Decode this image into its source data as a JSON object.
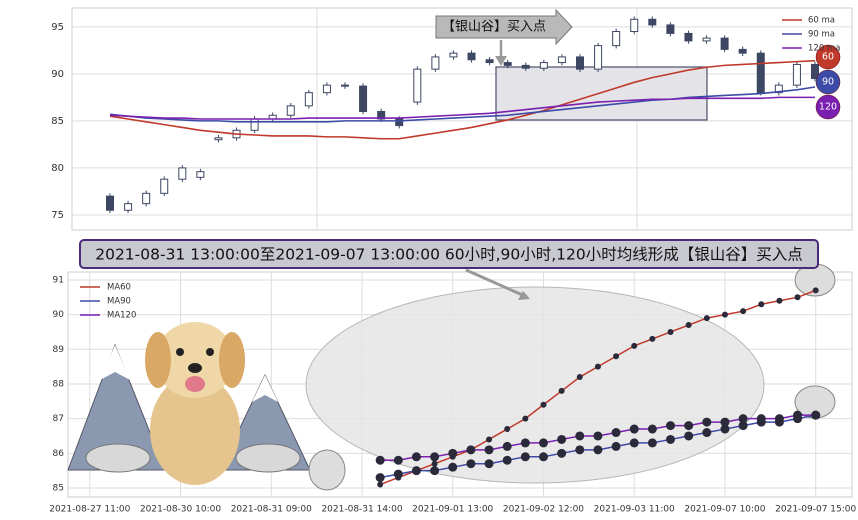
{
  "banner": "2021-08-31 13:00:00至2021-09-07 13:00:00 60小时,90小时,120小时均线形成【银山谷】买入点",
  "chart_data": [
    {
      "type": "candlestick",
      "annotation": "【银山谷】买入点",
      "badge_labels": [
        "60",
        "90",
        "120"
      ],
      "ylim": [
        73.4,
        97
      ],
      "yticks": [
        75,
        80,
        85,
        90,
        95
      ],
      "grid": true,
      "legend": "upper right",
      "up_color": "#ffffff",
      "down_color": "#3d4763",
      "open": [
        77,
        75.5,
        76.2,
        77.3,
        78.8,
        79.0,
        83.0,
        83.2,
        84.0,
        85.2,
        85.6,
        86.6,
        88.0,
        88.8,
        88.7,
        86.0,
        85.2,
        87.0,
        90.5,
        91.8,
        92.2,
        91.5,
        91.2,
        90.9,
        90.6,
        91.2,
        91.8,
        90.5,
        93.0,
        94.5,
        95.8,
        95.2,
        94.3,
        93.5,
        93.8,
        92.6,
        92.2,
        88.0,
        88.8,
        91.0
      ],
      "close": [
        75.5,
        76.2,
        77.3,
        78.8,
        80.0,
        79.6,
        83.2,
        84.0,
        85.2,
        85.6,
        86.6,
        88.0,
        88.8,
        88.7,
        86.0,
        85.2,
        84.5,
        90.5,
        91.8,
        92.2,
        91.5,
        91.2,
        90.9,
        90.6,
        91.2,
        91.8,
        90.5,
        93.0,
        94.5,
        95.8,
        95.2,
        94.3,
        93.5,
        93.8,
        92.6,
        92.2,
        88.0,
        88.8,
        91.0,
        89.5
      ],
      "high": [
        77.3,
        76.5,
        77.6,
        79.1,
        80.3,
        79.9,
        83.5,
        84.3,
        85.5,
        85.9,
        86.9,
        88.3,
        89.1,
        89.1,
        89.0,
        86.3,
        85.5,
        90.8,
        92.1,
        92.5,
        92.5,
        91.8,
        91.5,
        91.2,
        91.5,
        92.1,
        92.1,
        93.3,
        94.8,
        96.1,
        96.1,
        95.5,
        94.6,
        94.1,
        94.1,
        92.9,
        92.5,
        89.1,
        91.3,
        91.3
      ],
      "low": [
        75.2,
        75.2,
        75.9,
        77.0,
        78.5,
        78.7,
        82.7,
        82.9,
        83.7,
        84.9,
        85.3,
        86.3,
        87.7,
        88.4,
        85.7,
        84.9,
        84.2,
        86.7,
        90.2,
        91.5,
        91.2,
        90.9,
        90.6,
        90.3,
        90.3,
        90.9,
        90.2,
        90.2,
        92.7,
        94.2,
        94.9,
        94.0,
        93.2,
        93.2,
        92.3,
        91.9,
        87.7,
        87.7,
        88.5,
        89.2
      ],
      "series": [
        {
          "name": "60 ma",
          "color": "#c0392b",
          "values": [
            85.5,
            85.2,
            84.9,
            84.6,
            84.3,
            84.0,
            83.8,
            83.6,
            83.5,
            83.4,
            83.4,
            83.4,
            83.3,
            83.3,
            83.2,
            83.1,
            83.1,
            83.4,
            83.7,
            84.0,
            84.3,
            84.7,
            85.1,
            85.6,
            86.1,
            86.7,
            87.3,
            87.9,
            88.5,
            89.1,
            89.6,
            90.0,
            90.4,
            90.7,
            90.9,
            91.0,
            91.1,
            91.2,
            91.3,
            91.4
          ]
        },
        {
          "name": "90 ma",
          "color": "#3d4ba8",
          "values": [
            85.7,
            85.5,
            85.3,
            85.2,
            85.1,
            85.0,
            85.0,
            84.9,
            84.9,
            84.9,
            84.9,
            84.9,
            84.9,
            85.0,
            85.0,
            85.0,
            85.0,
            85.1,
            85.2,
            85.3,
            85.4,
            85.5,
            85.6,
            85.8,
            86.0,
            86.2,
            86.4,
            86.6,
            86.8,
            87.0,
            87.2,
            87.3,
            87.5,
            87.6,
            87.7,
            87.8,
            87.9,
            88.1,
            88.3,
            88.6
          ]
        },
        {
          "name": "120 ma",
          "color": "#7a1fb0",
          "values": [
            85.6,
            85.5,
            85.4,
            85.3,
            85.3,
            85.2,
            85.2,
            85.2,
            85.2,
            85.2,
            85.2,
            85.3,
            85.3,
            85.3,
            85.3,
            85.3,
            85.3,
            85.4,
            85.5,
            85.6,
            85.7,
            85.8,
            86.0,
            86.2,
            86.4,
            86.6,
            86.8,
            87.0,
            87.1,
            87.2,
            87.3,
            87.3,
            87.4,
            87.4,
            87.4,
            87.4,
            87.4,
            87.5,
            87.5,
            87.5
          ]
        }
      ]
    },
    {
      "type": "line",
      "ylim": [
        84.74,
        91.23
      ],
      "yticks": [
        85,
        86,
        87,
        88,
        89,
        90,
        91
      ],
      "xlim": [
        -1.2,
        42
      ],
      "xticks": [
        {
          "value": 0,
          "label": "2021-08-27 11:00"
        },
        {
          "value": 5,
          "label": "2021-08-30 10:00"
        },
        {
          "value": 10,
          "label": "2021-08-31 09:00"
        },
        {
          "value": 15,
          "label": "2021-08-31 14:00"
        },
        {
          "value": 20,
          "label": "2021-09-01 13:00"
        },
        {
          "value": 25,
          "label": "2021-09-02 12:00"
        },
        {
          "value": 30,
          "label": "2021-09-03 11:00"
        },
        {
          "value": 35,
          "label": "2021-09-07 10:00"
        },
        {
          "value": 40,
          "label": "2021-09-07 15:00"
        }
      ],
      "grid": true,
      "legend": "upper left",
      "x": [
        16,
        17,
        18,
        19,
        20,
        21,
        22,
        23,
        24,
        25,
        26,
        27,
        28,
        29,
        30,
        31,
        32,
        33,
        34,
        35,
        36,
        37,
        38,
        39,
        40
      ],
      "series": [
        {
          "name": "MA60",
          "color": "#c0392b",
          "values": [
            85.1,
            85.3,
            85.5,
            85.7,
            85.9,
            86.1,
            86.4,
            86.7,
            87.0,
            87.4,
            87.8,
            88.2,
            88.5,
            88.8,
            89.1,
            89.3,
            89.5,
            89.7,
            89.9,
            90.0,
            90.1,
            90.3,
            90.4,
            90.5,
            90.7
          ]
        },
        {
          "name": "MA90",
          "color": "#3d4ba8",
          "values": [
            85.3,
            85.4,
            85.5,
            85.5,
            85.6,
            85.7,
            85.7,
            85.8,
            85.9,
            85.9,
            86.0,
            86.1,
            86.1,
            86.2,
            86.3,
            86.3,
            86.4,
            86.5,
            86.6,
            86.7,
            86.8,
            86.9,
            86.9,
            87.0,
            87.1
          ]
        },
        {
          "name": "MA120",
          "color": "#7a1fb0",
          "values": [
            85.8,
            85.8,
            85.9,
            85.9,
            86.0,
            86.1,
            86.1,
            86.2,
            86.3,
            86.3,
            86.4,
            86.5,
            86.5,
            86.6,
            86.7,
            86.7,
            86.8,
            86.8,
            86.9,
            86.9,
            87.0,
            87.0,
            87.0,
            87.1,
            87.1
          ]
        }
      ]
    }
  ]
}
